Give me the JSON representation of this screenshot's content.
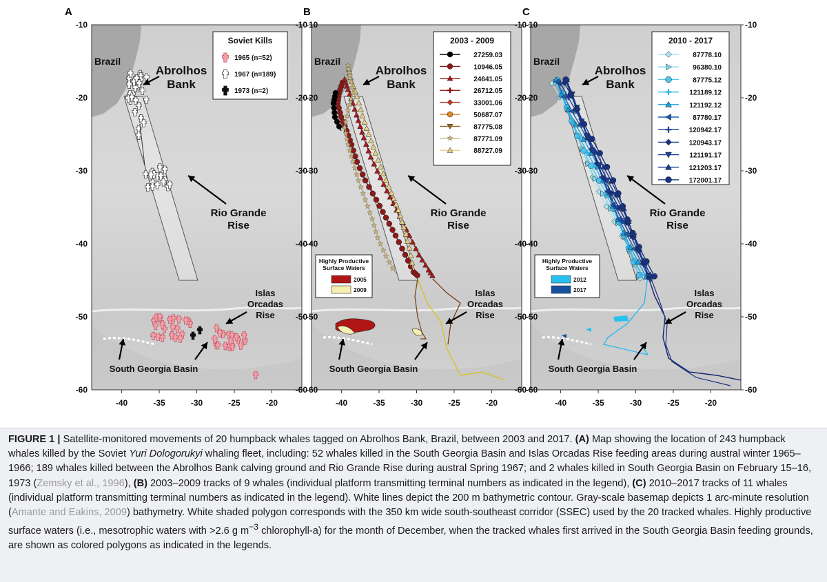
{
  "panels": [
    {
      "letter": "A",
      "legend_title": "Soviet Kills",
      "legend_items": [
        "1965 (n=52)",
        "1967 (n=189)",
        "1973 (n=2)"
      ]
    },
    {
      "letter": "B",
      "legend_title": "2003 - 2009",
      "legend_items": [
        "27259.03",
        "10946.05",
        "24641.05",
        "26712.05",
        "33001.06",
        "50687.07",
        "87775.08",
        "87771.09",
        "88727.09"
      ],
      "hpw_title_1": "Highly Productive",
      "hpw_title_2": "Surface Waters",
      "hpw_items": [
        "2005",
        "2009"
      ]
    },
    {
      "letter": "C",
      "legend_title": "2010 - 2017",
      "legend_items": [
        "87778.10",
        "96380.10",
        "87775.12",
        "121189.12",
        "121192.12",
        "87780.17",
        "120942.17",
        "120943.17",
        "121191.17",
        "121203.17",
        "172001.17"
      ],
      "hpw_title_1": "Highly Productive",
      "hpw_title_2": "Surface Waters",
      "hpw_items": [
        "2012",
        "2017"
      ]
    }
  ],
  "map_labels": {
    "brazil": "Brazil",
    "abrolhos_1": "Abrolhos",
    "abrolhos_2": "Bank",
    "rio_1": "Rio Grande",
    "rio_2": "Rise",
    "islas_1": "Islas",
    "islas_2": "Orcadas",
    "islas_3": "Rise",
    "sgb": "South Georgia Basin"
  },
  "axes": {
    "y_ticks": [
      "-10",
      "-20",
      "-30",
      "-40",
      "-50",
      "-60"
    ],
    "x_ticks": [
      "-40",
      "-35",
      "-30",
      "-25",
      "-20"
    ]
  },
  "colors": {
    "b_series": [
      "#000000",
      "#8b1a1a",
      "#a51c1c",
      "#8c1111",
      "#c0392b",
      "#d8892b",
      "#9b6a2b",
      "#c9b47a",
      "#e3cf86"
    ],
    "c_series": [
      "#a8e4f0",
      "#7fd8ee",
      "#4fc4ec",
      "#2fb2e6",
      "#1c9fde",
      "#1a5fb0",
      "#163f96",
      "#14338a",
      "#1b3fa0",
      "#193a94",
      "#17327f"
    ],
    "hpw_b": [
      "#b01616",
      "#f4eeb0"
    ],
    "hpw_c": [
      "#27c0ef",
      "#16509e"
    ]
  },
  "caption": {
    "label": "FIGURE 1 |",
    "s1": " Satellite-monitored movements of 20 humpback whales tagged on Abrolhos Bank, Brazil, between 2003 and 2017. ",
    "a_label": "(A)",
    "s2": " Map showing the location of 243 humpback whales killed by the Soviet ",
    "ship": "Yuri Dologorukyi",
    "s3": " whaling fleet, including: 52 whales killed in the South Georgia Basin and Islas Orcadas Rise feeding areas during austral winter 1965–1966; 189 whales killed between the Abrolhos Bank calving ground and Rio Grande Rise during austral Spring 1967; and 2 whales killed in South Georgia Basin on February 15–16, 1973 (",
    "ref1": "Zemsky et al., 1996",
    "s4": "), ",
    "b_label": "(B)",
    "s5": " 2003–2009 tracks of 9 whales (individual platform transmitting terminal numbers as indicated in the legend), ",
    "c_label": "(C)",
    "s6": " 2010–2017 tracks of 11 whales (individual platform transmitting terminal numbers as indicated in the legend). White lines depict the 200 m bathymetric contour. Gray-scale basemap depicts 1 arc-minute resolution (",
    "ref2": "Amante and Eakins, 2009",
    "s7": ") bathymetry. White shaded polygon corresponds with the 350 km wide south-southeast corridor (SSEC) used by the 20 tracked whales. Highly productive surface waters (i.e., mesotrophic waters with >2.6 g m",
    "sup": "−3",
    "s8": " chlorophyll-a) for the month of December, when the tracked whales first arrived in the South Georgia Basin feeding grounds, are shown as colored polygons as indicated in the legends."
  }
}
